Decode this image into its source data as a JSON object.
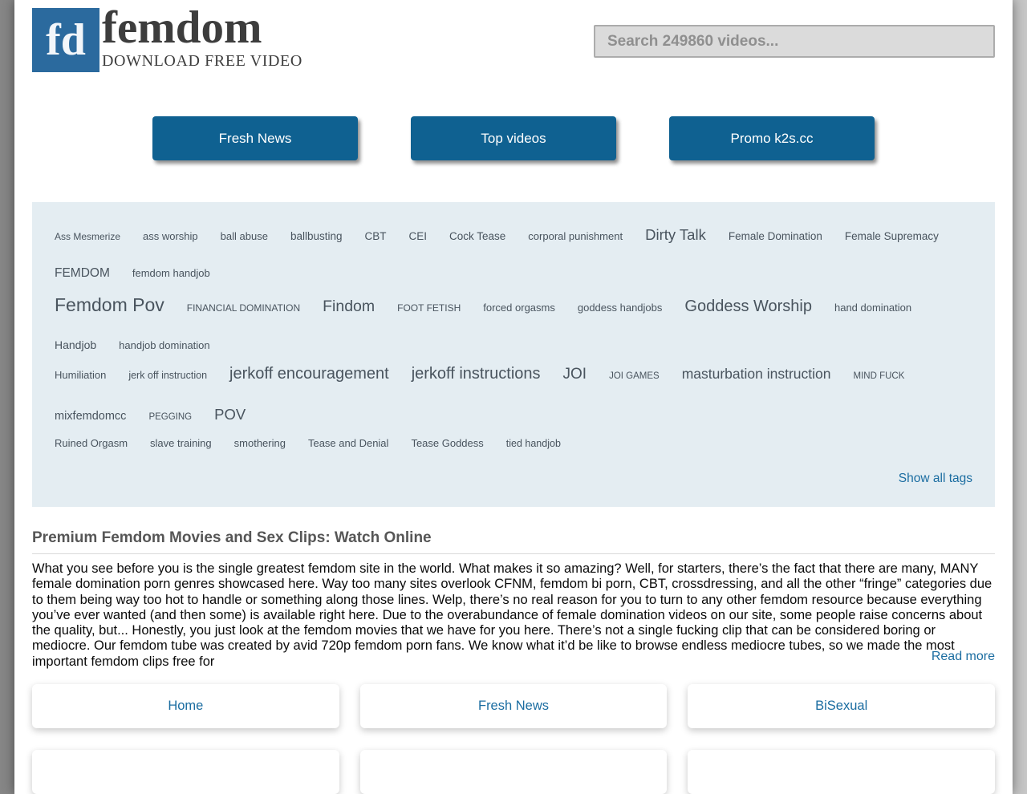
{
  "header": {
    "logo": {
      "abbr": "fd",
      "name": "femdom",
      "tagline": "DOWNLOAD FREE VIDEO"
    },
    "search": {
      "placeholder": "Search 249860 videos..."
    }
  },
  "nav_buttons": [
    {
      "label": "Fresh News"
    },
    {
      "label": "Top videos"
    },
    {
      "label": "Promo k2s.cc"
    }
  ],
  "tag_cloud": {
    "rows": [
      [
        {
          "label": "Ass Mesmerize",
          "size": 12
        },
        {
          "label": "ass worship",
          "size": 13
        },
        {
          "label": "ball abuse",
          "size": 13
        },
        {
          "label": "ballbusting",
          "size": 13.5
        },
        {
          "label": "CBT",
          "size": 13.5
        },
        {
          "label": "CEI",
          "size": 13.5
        },
        {
          "label": "Cock Tease",
          "size": 13.5
        },
        {
          "label": "corporal punishment",
          "size": 13
        },
        {
          "label": "Dirty Talk",
          "size": 18.5
        },
        {
          "label": "Female Domination",
          "size": 13.5
        },
        {
          "label": "Female Supremacy",
          "size": 13.5
        },
        {
          "label": "FEMDOM",
          "size": 15.5
        },
        {
          "label": "femdom handjob",
          "size": 13
        }
      ],
      [
        {
          "label": "Femdom Pov",
          "size": 23
        },
        {
          "label": "FINANCIAL DOMINATION",
          "size": 12
        },
        {
          "label": "Findom",
          "size": 19.5
        },
        {
          "label": "FOOT FETISH",
          "size": 12
        },
        {
          "label": "forced orgasms",
          "size": 13
        },
        {
          "label": "goddess handjobs",
          "size": 13
        },
        {
          "label": "Goddess Worship",
          "size": 20
        },
        {
          "label": "hand domination",
          "size": 13
        },
        {
          "label": "Handjob",
          "size": 14
        },
        {
          "label": "handjob domination",
          "size": 13
        }
      ],
      [
        {
          "label": "Humiliation",
          "size": 13
        },
        {
          "label": "jerk off instruction",
          "size": 12.5
        },
        {
          "label": "jerkoff encouragement",
          "size": 20
        },
        {
          "label": "jerkoff instructions",
          "size": 20
        },
        {
          "label": "JOI",
          "size": 19
        },
        {
          "label": "JOI GAMES",
          "size": 11.5
        },
        {
          "label": "masturbation instruction",
          "size": 17.5
        },
        {
          "label": "MIND FUCK",
          "size": 11.5
        },
        {
          "label": "mixfemdomcc",
          "size": 14.5
        },
        {
          "label": "PEGGING",
          "size": 11.5
        },
        {
          "label": "POV",
          "size": 18.5
        }
      ],
      [
        {
          "label": "Ruined Orgasm",
          "size": 13
        },
        {
          "label": "slave training",
          "size": 13
        },
        {
          "label": "smothering",
          "size": 13
        },
        {
          "label": "Tease and Denial",
          "size": 13
        },
        {
          "label": "Tease Goddess",
          "size": 13
        },
        {
          "label": "tied handjob",
          "size": 12.5
        }
      ]
    ],
    "show_all_label": "Show all tags"
  },
  "article": {
    "heading": "Premium Femdom Movies and Sex Clips: Watch Online",
    "body": "What you see before you is the single greatest femdom site in the world. What makes it so amazing? Well, for starters, there’s the fact that there are many, MANY female domination porn genres showcased here. Way too many sites overlook CFNM, femdom bi porn, CBT, crossdressing, and all the other “fringe” categories due to them being way too hot to handle or something along those lines. Welp, there’s no real reason for you to turn to any other femdom resource because everything you’ve ever wanted (and then some) is available right here. Due to the overabundance of female domination videos on our site, some people raise concerns about the quality, but... Honestly, you just look at the femdom movies that we have for you here. There’s not a single fucking clip that can be considered boring or mediocre. Our femdom tube was created by avid 720p femdom porn fans. We know what it’d be like to browse endless mediocre tubes, so we made the most important femdom clips free for",
    "read_more_label": "Read more"
  },
  "footer": {
    "visible_cards": [
      "Home",
      "Fresh News",
      "BiSexual"
    ],
    "partial_cards_count": 3
  },
  "colors": {
    "logo_blue": "#2b6a9e",
    "button_blue": "#0f6191",
    "link_blue": "#1b6da1",
    "tag_panel_bg": "#e4edf2",
    "tag_text": "#49545e",
    "search_bg": "#dbdbdb"
  }
}
